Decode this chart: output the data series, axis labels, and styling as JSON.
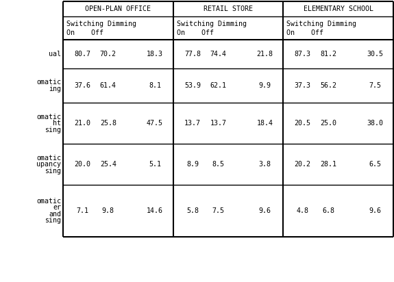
{
  "col_groups": [
    "OPEN-PLAN OFFICE",
    "RETAIL STORE",
    "ELEMENTARY SCHOOL"
  ],
  "row_label_lines": [
    [
      "ual"
    ],
    [
      "omatic",
      "ing"
    ],
    [
      "omatic",
      "ht",
      "sing"
    ],
    [
      "omatic",
      "upancy",
      "sing"
    ],
    [
      "omatic",
      "er",
      "and",
      "sing"
    ]
  ],
  "data": [
    [
      80.7,
      70.2,
      18.3,
      77.8,
      74.4,
      21.8,
      87.3,
      81.2,
      30.5
    ],
    [
      37.6,
      61.4,
      8.1,
      53.9,
      62.1,
      9.9,
      37.3,
      56.2,
      7.5
    ],
    [
      21.0,
      25.8,
      47.5,
      13.7,
      13.7,
      18.4,
      20.5,
      25.0,
      38.0
    ],
    [
      20.0,
      25.4,
      5.1,
      8.9,
      8.5,
      3.8,
      20.2,
      28.1,
      6.5
    ],
    [
      7.1,
      9.8,
      14.6,
      5.8,
      7.5,
      9.6,
      4.8,
      6.8,
      9.6
    ]
  ],
  "bg_color": "#ffffff",
  "font_size": 7.2
}
